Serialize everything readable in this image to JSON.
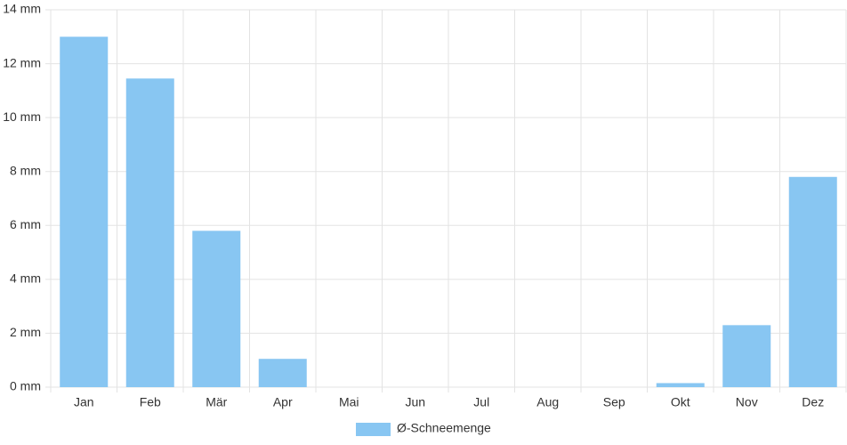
{
  "chart_data": {
    "type": "bar",
    "categories": [
      "Jan",
      "Feb",
      "Mär",
      "Apr",
      "Mai",
      "Jun",
      "Jul",
      "Aug",
      "Sep",
      "Okt",
      "Nov",
      "Dez"
    ],
    "series": [
      {
        "name": "Ø-Schneemenge",
        "color": "#88c6f2",
        "values": [
          13.0,
          11.45,
          5.8,
          1.05,
          0,
          0,
          0,
          0,
          0,
          0.15,
          2.3,
          7.8
        ]
      }
    ],
    "ylim": [
      0,
      14
    ],
    "yticks": [
      {
        "value": 0,
        "label": "0 mm"
      },
      {
        "value": 2,
        "label": "2 mm"
      },
      {
        "value": 4,
        "label": "4 mm"
      },
      {
        "value": 6,
        "label": "6 mm"
      },
      {
        "value": 8,
        "label": "8 mm"
      },
      {
        "value": 10,
        "label": "10 mm"
      },
      {
        "value": 12,
        "label": "12 mm"
      },
      {
        "value": 14,
        "label": "14 mm"
      }
    ],
    "grid": true,
    "legend": "bottom"
  }
}
